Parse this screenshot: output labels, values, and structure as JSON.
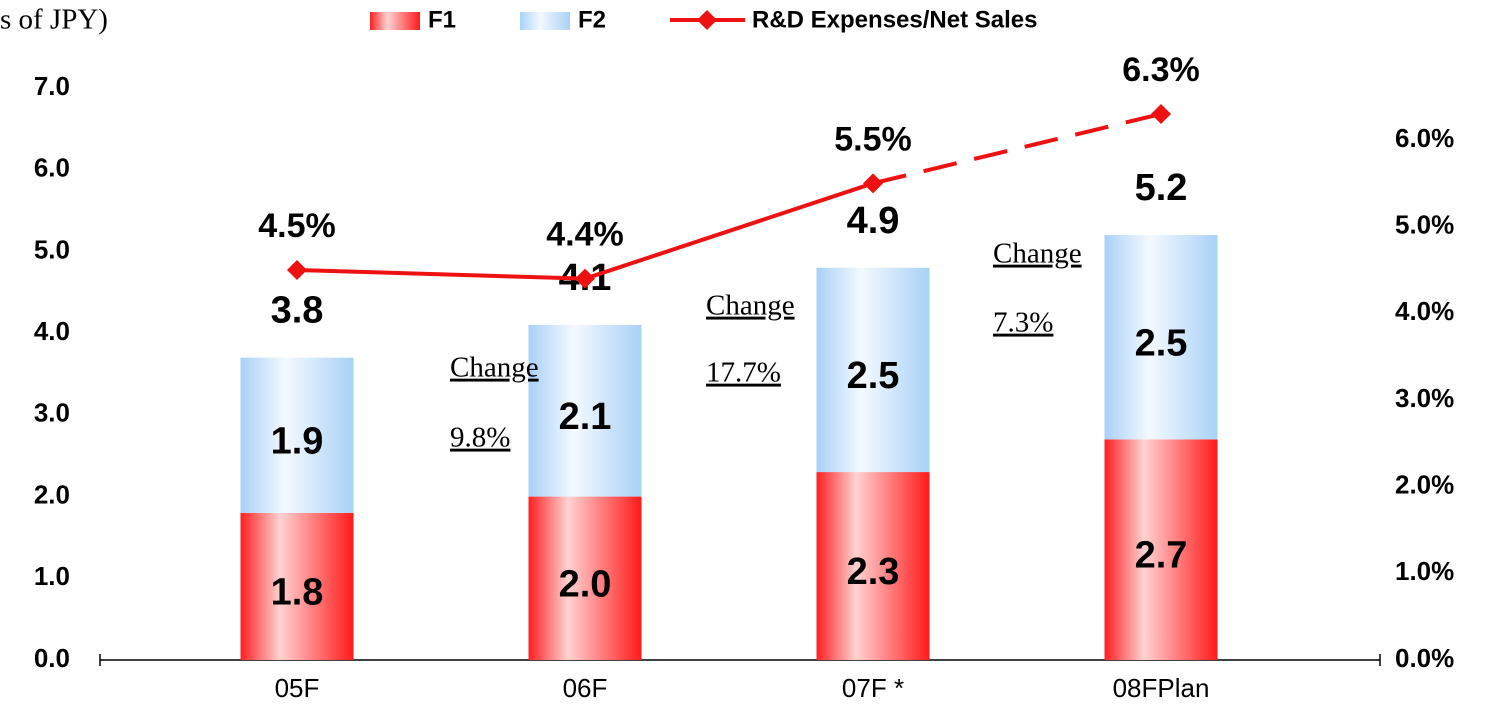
{
  "chart_data": {
    "type": "bar",
    "y_label": "s of JPY)",
    "categories": [
      "05F",
      "06F",
      "07F  *",
      "08FPlan"
    ],
    "series": [
      {
        "name": "F1",
        "color": "#ff1e1e",
        "values": [
          1.8,
          2.0,
          2.3,
          2.7
        ],
        "value_labels": [
          "1.8",
          "2.0",
          "2.3",
          "2.7"
        ]
      },
      {
        "name": "F2",
        "color": "#a9d1f7",
        "values": [
          1.9,
          2.1,
          2.5,
          2.5
        ],
        "value_labels": [
          "1.9",
          "2.1",
          "2.5",
          "2.5"
        ]
      },
      {
        "name": "R&D Expenses/Net Sales",
        "color": "#ee1111",
        "type": "line",
        "axis": "y2",
        "dashed_from": 2,
        "values": [
          4.5,
          4.4,
          5.5,
          6.3
        ],
        "value_labels": [
          "4.5%",
          "4.4%",
          "5.5%",
          "6.3%"
        ]
      }
    ],
    "total_labels": [
      "3.8",
      "4.1",
      "4.9",
      "5.2"
    ],
    "annotations": [
      {
        "text": "Change",
        "value": "9.8%"
      },
      {
        "text": "Change",
        "value": "17.7%"
      },
      {
        "text": "Change",
        "value": "7.3%"
      }
    ],
    "ylim": [
      0,
      7
    ],
    "yticks": [
      {
        "value": 0,
        "label": "0.0"
      },
      {
        "value": 1,
        "label": "1.0"
      },
      {
        "value": 2,
        "label": "2.0"
      },
      {
        "value": 3,
        "label": "3.0"
      },
      {
        "value": 4,
        "label": "4.0"
      },
      {
        "value": 5,
        "label": "5.0"
      },
      {
        "value": 6,
        "label": "6.0"
      },
      {
        "value": 7,
        "label": "7.0"
      }
    ],
    "y2lim": [
      0,
      6.6
    ],
    "y2ticks": [
      {
        "value": 0,
        "label": "0.0%"
      },
      {
        "value": 1,
        "label": "1.0%"
      },
      {
        "value": 2,
        "label": "2.0%"
      },
      {
        "value": 3,
        "label": "3.0%"
      },
      {
        "value": 4,
        "label": "4.0%"
      },
      {
        "value": 5,
        "label": "5.0%"
      },
      {
        "value": 6,
        "label": "6.0%"
      }
    ],
    "legend": "top"
  }
}
